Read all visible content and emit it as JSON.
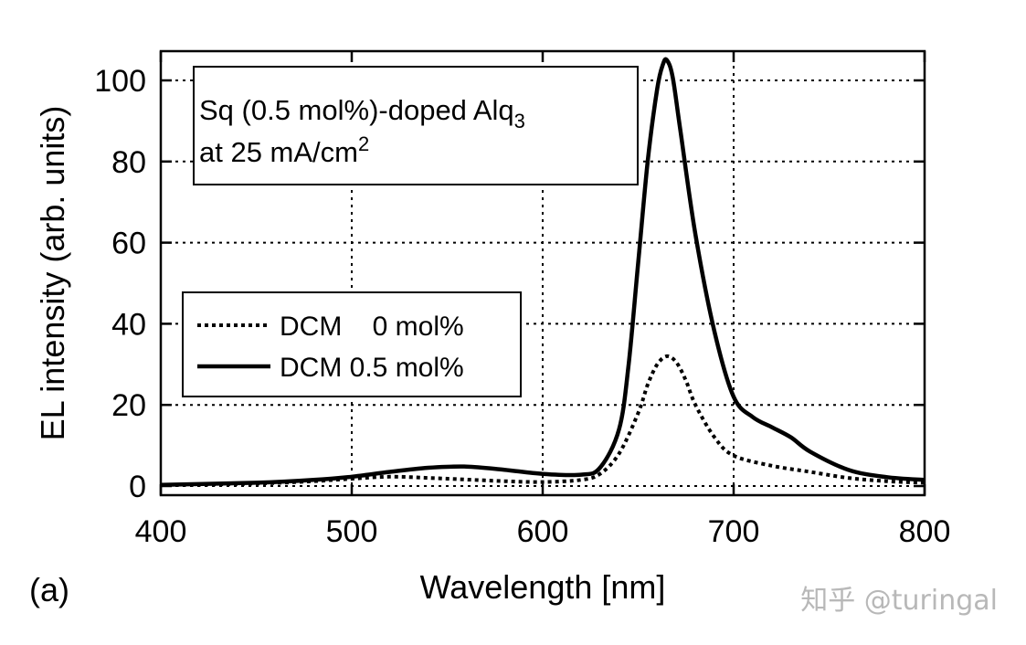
{
  "panel_label": "(a)",
  "watermark": "知乎 @turingal",
  "chart_data": {
    "type": "line",
    "xlabel": "Wavelength [nm]",
    "ylabel": "EL intensity (arb. units)",
    "xlim": [
      400,
      800
    ],
    "ylim": [
      0,
      105
    ],
    "xticks": [
      400,
      500,
      600,
      700,
      800
    ],
    "yticks": [
      0,
      20,
      40,
      60,
      80,
      100
    ],
    "xtick_labels": [
      "400",
      "500",
      "600",
      "700",
      "800"
    ],
    "ytick_labels": [
      "0",
      "20",
      "40",
      "60",
      "80",
      "100"
    ],
    "grid": true,
    "grid_style": "dotted",
    "annotation": {
      "line1_prefix": "Sq (0.5 mol%)-doped Alq",
      "line1_sub": "3",
      "line2_prefix": "at 25 mA/cm",
      "line2_sup": "2"
    },
    "legend_position": "middle-left",
    "series": [
      {
        "name": "DCM    0 mol%",
        "style": "dotted",
        "color": "#000000",
        "x": [
          400,
          450,
          480,
          500,
          520,
          540,
          560,
          580,
          600,
          620,
          630,
          640,
          650,
          655,
          660,
          665,
          670,
          675,
          680,
          690,
          700,
          720,
          740,
          760,
          780,
          800
        ],
        "y": [
          0.2,
          0.6,
          1.2,
          1.8,
          2.3,
          2.0,
          1.6,
          1.2,
          1.0,
          1.5,
          3.0,
          8.0,
          18.0,
          25.0,
          30.0,
          32.0,
          30.5,
          26.0,
          20.0,
          12.0,
          7.5,
          5.0,
          3.5,
          2.0,
          1.2,
          0.8
        ]
      },
      {
        "name": "DCM 0.5 mol%",
        "style": "solid",
        "color": "#000000",
        "x": [
          400,
          450,
          480,
          500,
          520,
          540,
          560,
          580,
          600,
          620,
          630,
          640,
          645,
          650,
          655,
          660,
          663,
          665,
          668,
          672,
          680,
          690,
          700,
          710,
          720,
          730,
          740,
          760,
          780,
          800
        ],
        "y": [
          0.3,
          0.8,
          1.5,
          2.3,
          3.5,
          4.5,
          4.8,
          4.0,
          3.0,
          2.8,
          4.5,
          14.0,
          30.0,
          55.0,
          80.0,
          98.0,
          104.0,
          105.0,
          101.0,
          88.0,
          62.0,
          38.0,
          22.0,
          17.0,
          14.5,
          12.0,
          8.5,
          4.0,
          2.2,
          1.5
        ]
      }
    ]
  }
}
